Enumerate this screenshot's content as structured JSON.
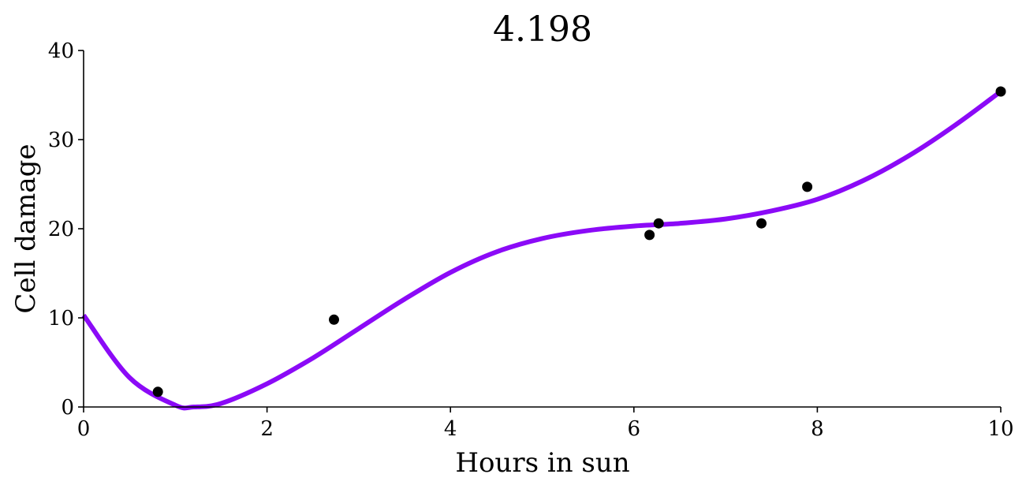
{
  "chart_data": {
    "type": "scatter",
    "title": "4.198",
    "xlabel": "Hours in sun",
    "ylabel": "Cell damage",
    "xlim": [
      0,
      10
    ],
    "ylim": [
      0,
      40
    ],
    "x_ticks": [
      0,
      2,
      4,
      6,
      8,
      10
    ],
    "y_ticks": [
      0,
      10,
      20,
      30,
      40
    ],
    "x_tick_labels": [
      "0",
      "2",
      "4",
      "6",
      "8",
      "10"
    ],
    "y_tick_labels": [
      "0",
      "10",
      "20",
      "30",
      "40"
    ],
    "grid": false,
    "legend": "none",
    "points": {
      "color": "#000000",
      "x": [
        0.81,
        2.73,
        6.17,
        6.27,
        7.39,
        7.89,
        10.0
      ],
      "y": [
        1.7,
        9.8,
        19.3,
        20.6,
        20.6,
        24.7,
        35.4
      ]
    },
    "fit_curve": {
      "color": "#8b0af7",
      "x": [
        0,
        0.5,
        1,
        1.2,
        1.5,
        2,
        2.5,
        3,
        3.5,
        4,
        4.5,
        5,
        5.5,
        6,
        6.5,
        7,
        7.5,
        8,
        8.5,
        9,
        9.5,
        10
      ],
      "y": [
        10.3,
        3.3,
        0.2,
        0.0,
        0.4,
        2.6,
        5.5,
        8.8,
        12.1,
        15.1,
        17.4,
        18.9,
        19.8,
        20.3,
        20.6,
        21.1,
        22.0,
        23.3,
        25.4,
        28.2,
        31.6,
        35.4
      ]
    }
  }
}
